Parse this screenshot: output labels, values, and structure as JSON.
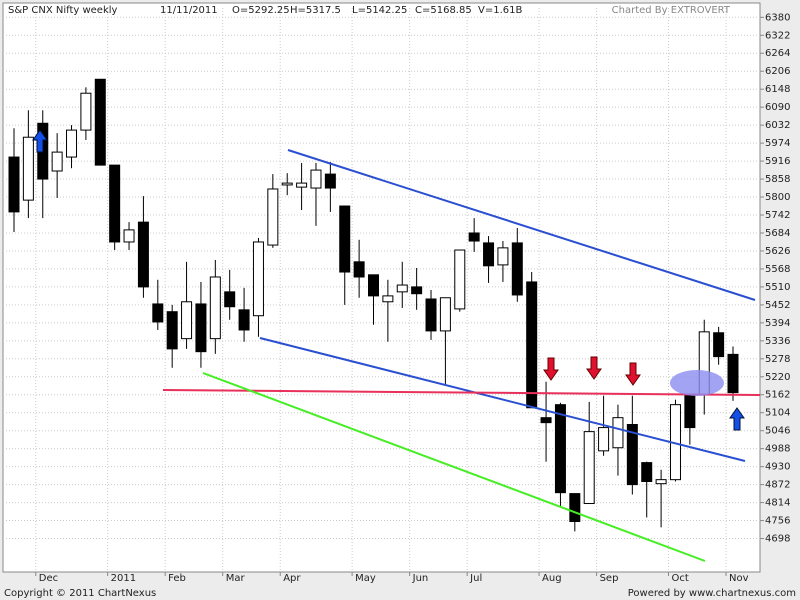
{
  "chart_data": {
    "type": "candlestick",
    "title": "S&P CNX Nifty weekly",
    "date": "11/11/2011",
    "quote": [
      "O=5292.25",
      "H=5317.5",
      "L=5142.25",
      "C=5168.85",
      "V=1.61B"
    ],
    "credit": "Charted By EXTROVERT",
    "copyright": "Copyright © 2011 ChartNexus",
    "powered_by": "Powered by www.chartnexus.com",
    "categories": [
      null,
      null,
      "Dec",
      null,
      null,
      null,
      null,
      "2011",
      null,
      null,
      null,
      "Feb",
      null,
      null,
      null,
      "Mar",
      null,
      null,
      null,
      "Apr",
      null,
      null,
      null,
      null,
      "May",
      null,
      null,
      null,
      "Jun",
      null,
      null,
      null,
      "Jul",
      null,
      null,
      null,
      null,
      "Aug",
      null,
      null,
      null,
      "Sep",
      null,
      null,
      null,
      null,
      "Oct",
      null,
      null,
      null,
      "Nov"
    ],
    "open": [
      5929,
      5790,
      6038,
      5884,
      5929,
      6016,
      6180,
      5903,
      5655,
      5719,
      5455,
      5430,
      5343,
      5455,
      5343,
      5494,
      5436,
      5417,
      5645,
      5839,
      5832,
      5829,
      5874,
      5771,
      5591,
      5549,
      5462,
      5494,
      5510,
      5471,
      5368,
      5439,
      5684,
      5652,
      5581,
      5652,
      5526,
      5088,
      5130,
      4843,
      4811,
      4981,
      4991,
      5066,
      4943,
      4875,
      4888,
      5162,
      5162,
      5362,
      5292.25
    ],
    "high": [
      6022,
      6080,
      6080,
      6006,
      6032,
      6154,
      6180,
      5903,
      5719,
      5803,
      5533,
      5452,
      5591,
      5526,
      5597,
      5565,
      5507,
      5668,
      5874,
      5877,
      5910,
      5910,
      5913,
      5771,
      5662,
      5549,
      5533,
      5591,
      5571,
      5500,
      5475,
      5629,
      5732,
      5674,
      5658,
      5700,
      5558,
      5204,
      5136,
      4843,
      5139,
      5159,
      5130,
      5159,
      4946,
      4920,
      5146,
      5162,
      5404,
      5381,
      5317.5
    ],
    "low": [
      5687,
      5732,
      5732,
      5797,
      5893,
      5984,
      5903,
      5629,
      5629,
      5475,
      5371,
      5249,
      5310,
      5249,
      5294,
      5404,
      5333,
      5349,
      5636,
      5806,
      5758,
      5707,
      5752,
      5452,
      5475,
      5388,
      5333,
      5442,
      5436,
      5339,
      5194,
      5430,
      5623,
      5523,
      5526,
      5462,
      5120,
      4946,
      4798,
      4721,
      4811,
      4965,
      4901,
      4840,
      4766,
      4734,
      4882,
      5001,
      5098,
      5259,
      5142.25
    ],
    "close": [
      5752,
      5993,
      5858,
      5945,
      6016,
      6135,
      5903,
      5655,
      5694,
      5510,
      5397,
      5310,
      5462,
      5301,
      5542,
      5446,
      5371,
      5655,
      5826,
      5845,
      5845,
      5887,
      5829,
      5558,
      5542,
      5481,
      5481,
      5516,
      5488,
      5368,
      5475,
      5629,
      5658,
      5578,
      5636,
      5484,
      5120,
      5072,
      4846,
      4753,
      5043,
      5056,
      5088,
      4872,
      4882,
      4888,
      5130,
      5056,
      5365,
      5285,
      5168.85
    ],
    "up_color": "#ffffff",
    "down_color": "#000000",
    "ylim": [
      4590,
      6410
    ],
    "yticks": [
      4698,
      4756,
      4814,
      4872,
      4930,
      4988,
      5046,
      5104,
      5162,
      5220,
      5278,
      5336,
      5394,
      5452,
      5510,
      5568,
      5626,
      5684,
      5742,
      5800,
      5858,
      5916,
      5974,
      6032,
      6090,
      6148,
      6206,
      6264,
      6322,
      6380
    ],
    "grid": true
  }
}
